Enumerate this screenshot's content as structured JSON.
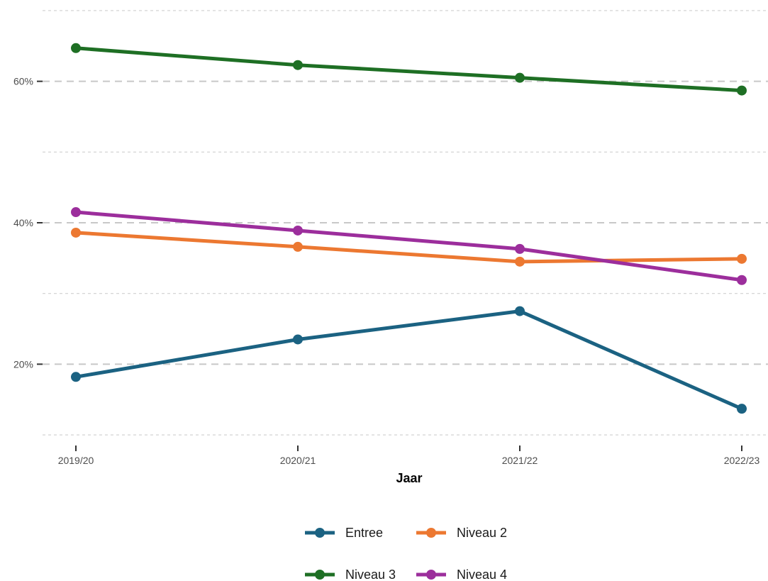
{
  "chart_data": {
    "type": "line",
    "categories": [
      "2019/20",
      "2020/21",
      "2021/22",
      "2022/23"
    ],
    "xlabel": "Jaar",
    "ylabel": "",
    "ylim": [
      8.5,
      71.5
    ],
    "y_major_ticks": [
      20,
      40,
      60
    ],
    "y_minor_ticks": [
      10,
      30,
      50,
      70
    ],
    "y_tick_labels": [
      "20%",
      "40%",
      "60%"
    ],
    "grid": true,
    "legend_position": "bottom",
    "series": [
      {
        "name": "Entree",
        "color": "#1b6282",
        "values": [
          18.2,
          23.5,
          27.5,
          13.7
        ]
      },
      {
        "name": "Niveau 2",
        "color": "#ec7831",
        "values": [
          38.6,
          36.6,
          34.5,
          34.9
        ]
      },
      {
        "name": "Niveau 3",
        "color": "#1e6f24",
        "values": [
          64.7,
          62.3,
          60.5,
          58.7
        ]
      },
      {
        "name": "Niveau 4",
        "color": "#9c2e9c",
        "values": [
          41.5,
          38.9,
          36.3,
          31.9
        ]
      }
    ]
  }
}
